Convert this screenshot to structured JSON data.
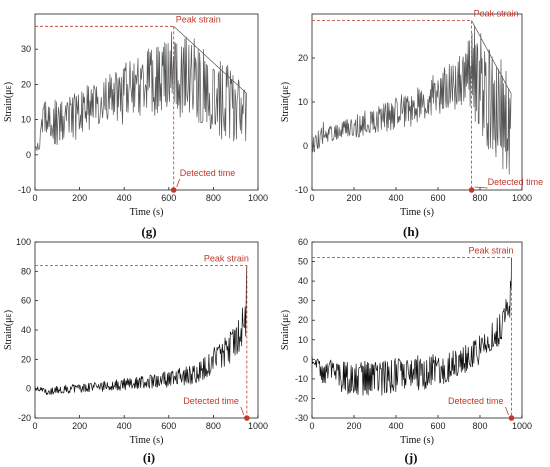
{
  "chart_data": [
    {
      "type": "line",
      "panel": "(g)",
      "xlabel": "Time (s)",
      "ylabel": "Strain(με)",
      "xlim": [
        0,
        1000
      ],
      "ylim": [
        -10,
        40
      ],
      "xticks": [
        0,
        200,
        400,
        600,
        800,
        1000
      ],
      "yticks": [
        -10,
        0,
        10,
        20,
        30
      ],
      "line_color": "#555555",
      "annotation_color": "#c0392b",
      "peak": {
        "label": "Peak strain",
        "time": 622,
        "strain": 36.5
      },
      "detected": {
        "label": "Detected time",
        "time": 622
      },
      "series": [
        {
          "x": [
            0,
            20,
            40,
            60,
            100,
            150,
            200,
            250,
            300,
            350,
            400,
            450,
            500,
            550,
            600,
            622,
            650,
            700,
            750,
            800,
            850,
            900,
            950
          ],
          "low": [
            0,
            1,
            5,
            5,
            2,
            3,
            5,
            7,
            9,
            10,
            8,
            12,
            10,
            11,
            14,
            14,
            8,
            10,
            8,
            5,
            3,
            3,
            2
          ],
          "high": [
            2,
            6,
            16,
            16,
            16,
            17,
            19,
            20,
            22,
            25,
            26,
            28,
            30,
            32,
            34,
            36.5,
            33,
            34,
            31,
            29,
            27,
            24,
            20
          ],
          "values": [
            1,
            3,
            10,
            10,
            9,
            10,
            12,
            13,
            15,
            17,
            17,
            20,
            20,
            21,
            24,
            25,
            20,
            22,
            19,
            17,
            15,
            13,
            11
          ]
        }
      ]
    },
    {
      "type": "line",
      "panel": "(h)",
      "xlabel": "Time (s)",
      "ylabel": "Strain(με)",
      "xlim": [
        0,
        1000
      ],
      "ylim": [
        -10,
        30
      ],
      "xticks": [
        0,
        200,
        400,
        600,
        800,
        1000
      ],
      "yticks": [
        -10,
        0,
        10,
        20
      ],
      "line_color": "#555555",
      "annotation_color": "#c0392b",
      "peak": {
        "label": "Peak strain",
        "time": 760,
        "strain": 28.5
      },
      "detected": {
        "label": "Detected time",
        "time": 760
      },
      "series": [
        {
          "x": [
            0,
            30,
            60,
            100,
            150,
            200,
            250,
            300,
            350,
            400,
            450,
            500,
            550,
            600,
            650,
            700,
            730,
            760,
            800,
            850,
            900,
            950
          ],
          "low": [
            -2,
            -1,
            1,
            1,
            2,
            2,
            2,
            3,
            3,
            4,
            4,
            5,
            6,
            7,
            8,
            8,
            9,
            7,
            2,
            -3,
            -5,
            -7
          ],
          "high": [
            2,
            4,
            6,
            5,
            6,
            7,
            8,
            9,
            10,
            11,
            13,
            14,
            15,
            17,
            19,
            21,
            22,
            28.5,
            26,
            24,
            20,
            14
          ],
          "values": [
            0,
            1,
            3,
            3,
            4,
            4,
            5,
            6,
            7,
            8,
            9,
            9,
            10,
            12,
            13,
            15,
            16,
            18,
            15,
            10,
            7,
            3
          ]
        }
      ]
    },
    {
      "type": "line",
      "panel": "(i)",
      "xlabel": "Time (s)",
      "ylabel": "Strain(με)",
      "xlim": [
        0,
        1000
      ],
      "ylim": [
        -20,
        100
      ],
      "xticks": [
        0,
        200,
        400,
        600,
        800,
        1000
      ],
      "yticks": [
        -20,
        0,
        20,
        40,
        60,
        80,
        100
      ],
      "line_color": "#111111",
      "annotation_color": "#c0392b",
      "peak": {
        "label": "Peak strain",
        "time": 950,
        "strain": 84
      },
      "detected": {
        "label": "Detected time",
        "time": 950
      },
      "series": [
        {
          "x": [
            0,
            40,
            60,
            80,
            100,
            150,
            200,
            300,
            400,
            500,
            600,
            700,
            750,
            800,
            850,
            900,
            930,
            945,
            950
          ],
          "low": [
            -1,
            -2,
            -6,
            -4,
            -3,
            -4,
            -3,
            -2,
            -1,
            0,
            1,
            3,
            5,
            9,
            14,
            20,
            26,
            30,
            40
          ],
          "high": [
            2,
            1,
            1,
            1,
            2,
            3,
            4,
            5,
            7,
            9,
            12,
            17,
            22,
            28,
            36,
            46,
            56,
            66,
            84
          ],
          "values": [
            0,
            -1,
            -3,
            -2,
            -1,
            0,
            1,
            2,
            3,
            5,
            7,
            10,
            13,
            18,
            25,
            33,
            42,
            50,
            70
          ]
        }
      ]
    },
    {
      "type": "line",
      "panel": "(j)",
      "xlabel": "Time (s)",
      "ylabel": "Strain(με)",
      "xlim": [
        0,
        1000
      ],
      "ylim": [
        -30,
        60
      ],
      "xticks": [
        0,
        200,
        400,
        600,
        800,
        1000
      ],
      "yticks": [
        -30,
        -20,
        -10,
        0,
        10,
        20,
        30,
        40,
        50,
        60
      ],
      "line_color": "#111111",
      "annotation_color": "#c0392b",
      "peak": {
        "label": "Peak strain",
        "time": 950,
        "strain": 52
      },
      "detected": {
        "label": "Detected time",
        "time": 950
      },
      "series": [
        {
          "x": [
            0,
            30,
            50,
            80,
            100,
            150,
            200,
            300,
            400,
            500,
            600,
            650,
            700,
            750,
            800,
            850,
            900,
            930,
            950
          ],
          "low": [
            -3,
            -5,
            -15,
            -10,
            -12,
            -18,
            -20,
            -19,
            -17,
            -16,
            -14,
            -12,
            -10,
            -7,
            -3,
            2,
            8,
            14,
            25
          ],
          "high": [
            2,
            0,
            -2,
            0,
            0,
            -1,
            -1,
            0,
            1,
            2,
            3,
            4,
            6,
            9,
            13,
            18,
            25,
            33,
            52
          ],
          "values": [
            0,
            -2,
            -8,
            -5,
            -6,
            -9,
            -10,
            -10,
            -8,
            -7,
            -5,
            -4,
            -2,
            1,
            5,
            10,
            16,
            23,
            35
          ]
        }
      ]
    }
  ]
}
